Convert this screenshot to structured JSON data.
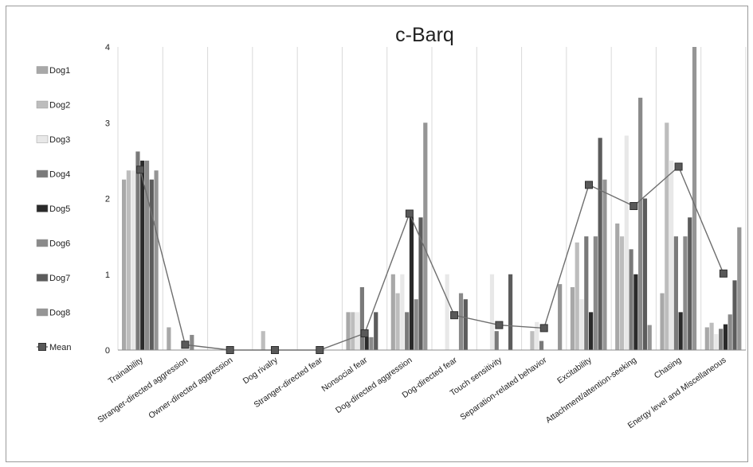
{
  "chart_data": {
    "type": "bar",
    "title": "c-Barq",
    "xlabel": "",
    "ylabel": "",
    "ylim": [
      0,
      4
    ],
    "yticks": [
      0,
      1,
      2,
      3,
      4
    ],
    "legend_position": "left",
    "grid": "vertical-category-lines",
    "categories": [
      "Trainability",
      "Stranger-directed aggression",
      "Owner-directed aggression",
      "Dog rivalry",
      "Stranger-directed fear",
      "Nonsocial fear",
      "Dog-directed aggression",
      "Dog-directed fear",
      "Touch sensitivity",
      "Separation-related behavior",
      "Excitability",
      "Attachment/attention-seeking",
      "Chasing",
      "Energy level and Miscellaneous"
    ],
    "series": [
      {
        "name": "Dog1",
        "color": "#a8a8a8",
        "values": [
          2.25,
          0.3,
          0,
          0,
          0,
          0.5,
          1.0,
          0,
          0,
          0,
          0.83,
          1.67,
          0.75,
          0.3
        ]
      },
      {
        "name": "Dog2",
        "color": "#bdbdbd",
        "values": [
          2.37,
          0,
          0,
          0.25,
          0,
          0.5,
          0.75,
          0,
          0,
          0.25,
          1.42,
          1.5,
          3.0,
          0.36
        ]
      },
      {
        "name": "Dog3",
        "color": "#e8e8e8",
        "values": [
          2.37,
          0,
          0,
          0,
          0,
          0.5,
          1.0,
          1.0,
          1.0,
          0.37,
          0.67,
          2.83,
          2.5,
          0.21
        ]
      },
      {
        "name": "Dog4",
        "color": "#7a7a7a",
        "values": [
          2.62,
          0,
          0,
          0,
          0,
          0.83,
          0.5,
          0,
          0.25,
          0.12,
          1.5,
          1.33,
          1.5,
          0.28
        ]
      },
      {
        "name": "Dog5",
        "color": "#2a2a2a",
        "values": [
          2.5,
          0,
          0,
          0,
          0,
          0.17,
          1.75,
          0,
          0,
          0,
          0.5,
          1.0,
          0.5,
          0.34
        ]
      },
      {
        "name": "Dog6",
        "color": "#8a8a8a",
        "values": [
          2.5,
          0.2,
          0,
          0,
          0,
          0.17,
          0.67,
          0.75,
          0,
          0,
          1.5,
          3.33,
          1.5,
          0.47
        ]
      },
      {
        "name": "Dog7",
        "color": "#5c5c5c",
        "values": [
          2.25,
          0,
          0,
          0,
          0,
          0.5,
          1.75,
          0.67,
          1.0,
          0,
          2.8,
          2.0,
          1.75,
          0.92
        ]
      },
      {
        "name": "Dog8",
        "color": "#959595",
        "values": [
          2.37,
          0,
          0,
          0,
          0,
          0,
          3.0,
          0,
          0,
          0.87,
          2.25,
          0.33,
          4.0,
          1.62
        ]
      },
      {
        "name": "Mean",
        "color": "#595959",
        "type": "line",
        "values": [
          2.38,
          0.07,
          0.0,
          0.0,
          0.0,
          0.22,
          1.8,
          0.46,
          0.33,
          0.29,
          2.18,
          1.9,
          2.42,
          1.01
        ]
      }
    ]
  }
}
